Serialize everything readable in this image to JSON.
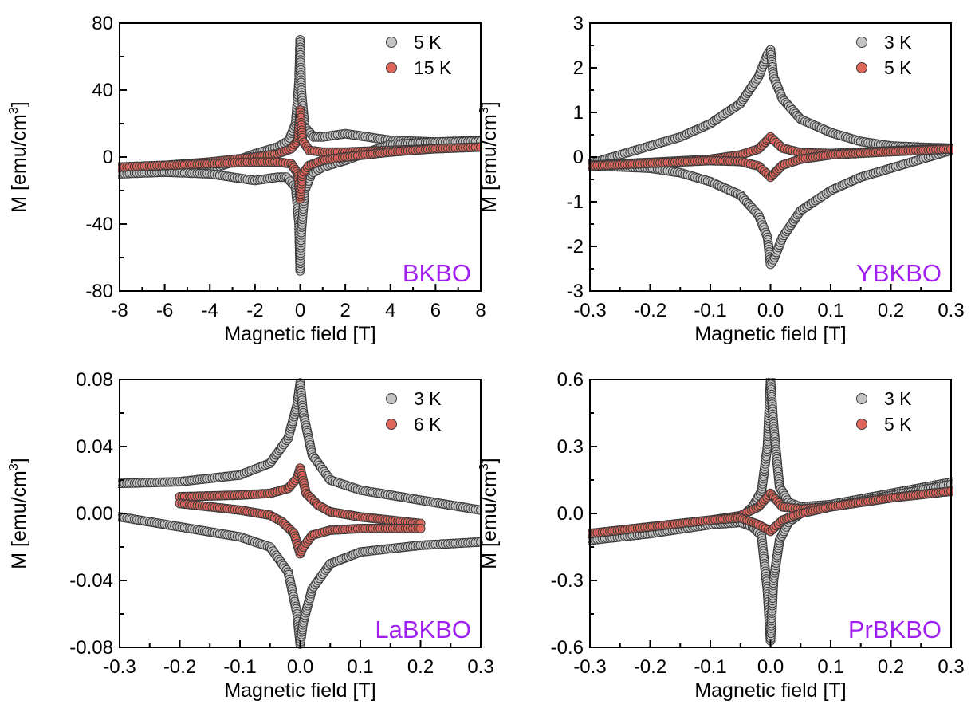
{
  "colors": {
    "gray_fill": "#c4c4c4",
    "red_fill": "#e0665c",
    "marker_edge": "#3a3a3a",
    "label_color": "#a020f0",
    "axis": "#000000"
  },
  "chart_data": [
    {
      "type": "scatter",
      "xlabel": "Magnetic field [T]",
      "ylabel_main": "M [emu/cm",
      "ylabel_sup": "3",
      "ylabel_end": "]",
      "sample_label": "BKBO",
      "xlim": [
        -8,
        8
      ],
      "ylim": [
        -80,
        80
      ],
      "xticks": [
        "-8",
        "-6",
        "-4",
        "-2",
        "0",
        "2",
        "4",
        "6",
        "8"
      ],
      "yticks": [
        "-80",
        "-40",
        "0",
        "40",
        "80"
      ],
      "legend_position": "top-right",
      "series": [
        {
          "name": "5 K",
          "color": "gray",
          "upper": [
            [
              -8,
              -9.5
            ],
            [
              -6,
              -9
            ],
            [
              -4,
              -7.5
            ],
            [
              -3,
              -3
            ],
            [
              -2,
              2
            ],
            [
              -1,
              6
            ],
            [
              -0.5,
              10
            ],
            [
              -0.2,
              20
            ],
            [
              -0.05,
              45
            ],
            [
              0,
              70
            ],
            [
              0.05,
              40
            ],
            [
              0.2,
              18
            ],
            [
              0.6,
              12
            ],
            [
              1,
              12
            ],
            [
              2,
              14
            ],
            [
              3,
              12
            ],
            [
              4,
              10
            ],
            [
              6,
              9
            ],
            [
              8,
              10
            ]
          ],
          "lower": [
            [
              -8,
              -10
            ],
            [
              -6,
              -9
            ],
            [
              -4,
              -10
            ],
            [
              -3,
              -12
            ],
            [
              -2,
              -14
            ],
            [
              -1,
              -12
            ],
            [
              -0.6,
              -12
            ],
            [
              -0.2,
              -18
            ],
            [
              -0.05,
              -40
            ],
            [
              0,
              -68
            ],
            [
              0.05,
              -45
            ],
            [
              0.2,
              -20
            ],
            [
              0.5,
              -10
            ],
            [
              1,
              -6
            ],
            [
              2,
              -2
            ],
            [
              3,
              3
            ],
            [
              4,
              7.5
            ],
            [
              6,
              9
            ],
            [
              8,
              9.5
            ]
          ]
        },
        {
          "name": "15 K",
          "color": "red",
          "upper": [
            [
              -8,
              -6
            ],
            [
              -6,
              -5
            ],
            [
              -4,
              -3
            ],
            [
              -2,
              0
            ],
            [
              -1,
              2
            ],
            [
              -0.4,
              5
            ],
            [
              -0.1,
              10
            ],
            [
              0,
              28
            ],
            [
              0.1,
              10
            ],
            [
              0.4,
              4
            ],
            [
              1,
              3
            ],
            [
              2,
              3
            ],
            [
              4,
              4
            ],
            [
              6,
              5
            ],
            [
              8,
              6
            ]
          ],
          "lower": [
            [
              -8,
              -6
            ],
            [
              -6,
              -5
            ],
            [
              -4,
              -4
            ],
            [
              -2,
              -3
            ],
            [
              -1,
              -3
            ],
            [
              -0.4,
              -4
            ],
            [
              -0.1,
              -10
            ],
            [
              0,
              -25
            ],
            [
              0.1,
              -10
            ],
            [
              0.4,
              -5
            ],
            [
              1,
              -2
            ],
            [
              2,
              0
            ],
            [
              4,
              3
            ],
            [
              6,
              5
            ],
            [
              8,
              6
            ]
          ]
        }
      ]
    },
    {
      "type": "scatter",
      "xlabel": "Magnetic field [T]",
      "ylabel_main": "M [emu/cm",
      "ylabel_sup": "3",
      "ylabel_end": "]",
      "sample_label": "YBKBO",
      "xlim": [
        -0.3,
        0.3
      ],
      "ylim": [
        -3,
        3
      ],
      "xticks": [
        "-0.3",
        "-0.2",
        "-0.1",
        "0.0",
        "0.1",
        "0.2",
        "0.3"
      ],
      "yticks": [
        "-3",
        "-2",
        "-1",
        "0",
        "1",
        "2",
        "3"
      ],
      "legend_position": "top-right",
      "series": [
        {
          "name": "3 K",
          "color": "gray",
          "upper": [
            [
              -0.3,
              -0.15
            ],
            [
              -0.25,
              0.05
            ],
            [
              -0.2,
              0.25
            ],
            [
              -0.15,
              0.45
            ],
            [
              -0.1,
              0.75
            ],
            [
              -0.05,
              1.2
            ],
            [
              -0.02,
              1.8
            ],
            [
              -0.005,
              2.3
            ],
            [
              0,
              2.4
            ],
            [
              0.005,
              1.8
            ],
            [
              0.02,
              1.3
            ],
            [
              0.05,
              0.85
            ],
            [
              0.1,
              0.55
            ],
            [
              0.15,
              0.35
            ],
            [
              0.2,
              0.25
            ],
            [
              0.25,
              0.22
            ],
            [
              0.3,
              0.2
            ]
          ],
          "lower": [
            [
              -0.3,
              -0.2
            ],
            [
              -0.25,
              -0.22
            ],
            [
              -0.2,
              -0.25
            ],
            [
              -0.15,
              -0.35
            ],
            [
              -0.1,
              -0.55
            ],
            [
              -0.05,
              -0.85
            ],
            [
              -0.02,
              -1.3
            ],
            [
              -0.005,
              -1.8
            ],
            [
              0,
              -2.4
            ],
            [
              0.005,
              -2.3
            ],
            [
              0.02,
              -1.8
            ],
            [
              0.05,
              -1.2
            ],
            [
              0.1,
              -0.75
            ],
            [
              0.15,
              -0.45
            ],
            [
              0.2,
              -0.25
            ],
            [
              0.25,
              -0.05
            ],
            [
              0.3,
              0.15
            ]
          ]
        },
        {
          "name": "5 K",
          "color": "red",
          "upper": [
            [
              -0.3,
              -0.18
            ],
            [
              -0.2,
              -0.12
            ],
            [
              -0.1,
              -0.05
            ],
            [
              -0.05,
              0.05
            ],
            [
              -0.02,
              0.18
            ],
            [
              0,
              0.45
            ],
            [
              0.02,
              0.2
            ],
            [
              0.05,
              0.1
            ],
            [
              0.1,
              0.08
            ],
            [
              0.2,
              0.14
            ],
            [
              0.3,
              0.2
            ]
          ],
          "lower": [
            [
              -0.3,
              -0.2
            ],
            [
              -0.2,
              -0.14
            ],
            [
              -0.1,
              -0.08
            ],
            [
              -0.05,
              -0.1
            ],
            [
              -0.02,
              -0.2
            ],
            [
              0,
              -0.45
            ],
            [
              0.02,
              -0.18
            ],
            [
              0.05,
              -0.05
            ],
            [
              0.1,
              0.05
            ],
            [
              0.2,
              0.12
            ],
            [
              0.3,
              0.18
            ]
          ]
        }
      ]
    },
    {
      "type": "scatter",
      "xlabel": "Magnetic field [T]",
      "ylabel_main": "M [emu/cm",
      "ylabel_sup": "3",
      "ylabel_end": "]",
      "sample_label": "LaBKBO",
      "xlim": [
        -0.3,
        0.3
      ],
      "ylim": [
        -0.08,
        0.08
      ],
      "xticks": [
        "-0.3",
        "-0.2",
        "-0.1",
        "0.0",
        "0.1",
        "0.2",
        "0.3"
      ],
      "yticks": [
        "-0.08",
        "-0.04",
        "0.00",
        "0.04",
        "0.08"
      ],
      "legend_position": "top-right",
      "series": [
        {
          "name": "3 K",
          "color": "gray",
          "upper": [
            [
              -0.3,
              0.018
            ],
            [
              -0.2,
              0.019
            ],
            [
              -0.1,
              0.023
            ],
            [
              -0.05,
              0.03
            ],
            [
              -0.02,
              0.045
            ],
            [
              -0.005,
              0.065
            ],
            [
              0,
              0.078
            ],
            [
              0.005,
              0.06
            ],
            [
              0.02,
              0.035
            ],
            [
              0.05,
              0.02
            ],
            [
              0.1,
              0.014
            ],
            [
              0.2,
              0.008
            ],
            [
              0.3,
              0.002
            ]
          ],
          "lower": [
            [
              -0.3,
              -0.002
            ],
            [
              -0.2,
              -0.008
            ],
            [
              -0.1,
              -0.014
            ],
            [
              -0.05,
              -0.02
            ],
            [
              -0.02,
              -0.035
            ],
            [
              -0.005,
              -0.06
            ],
            [
              0,
              -0.078
            ],
            [
              0.005,
              -0.065
            ],
            [
              0.02,
              -0.045
            ],
            [
              0.05,
              -0.03
            ],
            [
              0.1,
              -0.023
            ],
            [
              0.2,
              -0.019
            ],
            [
              0.3,
              -0.017
            ]
          ]
        },
        {
          "name": "6 K",
          "color": "red",
          "upper": [
            [
              -0.2,
              0.01
            ],
            [
              -0.1,
              0.011
            ],
            [
              -0.05,
              0.012
            ],
            [
              -0.02,
              0.015
            ],
            [
              -0.005,
              0.021
            ],
            [
              0,
              0.027
            ],
            [
              0.01,
              0.012
            ],
            [
              0.03,
              0.005
            ],
            [
              0.05,
              0.001
            ],
            [
              0.1,
              -0.002
            ],
            [
              0.2,
              -0.006
            ]
          ],
          "lower": [
            [
              -0.2,
              0.006
            ],
            [
              -0.1,
              0.002
            ],
            [
              -0.05,
              -0.001
            ],
            [
              -0.03,
              -0.005
            ],
            [
              -0.01,
              -0.012
            ],
            [
              0,
              -0.024
            ],
            [
              0.005,
              -0.02
            ],
            [
              0.02,
              -0.013
            ],
            [
              0.05,
              -0.01
            ],
            [
              0.1,
              -0.009
            ],
            [
              0.2,
              -0.009
            ]
          ]
        }
      ]
    },
    {
      "type": "scatter",
      "xlabel": "Magnetic field [T]",
      "ylabel_main": "M [emu/cm",
      "ylabel_sup": "3",
      "ylabel_end": "]",
      "sample_label": "PrBKBO",
      "xlim": [
        -0.3,
        0.3
      ],
      "ylim": [
        -0.6,
        0.6
      ],
      "xticks": [
        "-0.3",
        "-0.2",
        "-0.1",
        "0.0",
        "0.1",
        "0.2",
        "0.3"
      ],
      "yticks": [
        "-0.6",
        "-0.3",
        "0.0",
        "0.3",
        "0.6"
      ],
      "legend_position": "top-right",
      "series": [
        {
          "name": "3 K",
          "color": "gray",
          "upper": [
            [
              -0.3,
              -0.12
            ],
            [
              -0.2,
              -0.08
            ],
            [
              -0.1,
              -0.05
            ],
            [
              -0.05,
              -0.02
            ],
            [
              -0.03,
              0.03
            ],
            [
              -0.015,
              0.1
            ],
            [
              -0.005,
              0.3
            ],
            [
              0,
              0.6
            ],
            [
              0.005,
              0.4
            ],
            [
              0.015,
              0.12
            ],
            [
              0.03,
              0.05
            ],
            [
              0.05,
              0.03
            ],
            [
              0.1,
              0.04
            ],
            [
              0.2,
              0.09
            ],
            [
              0.3,
              0.14
            ]
          ],
          "lower": [
            [
              -0.3,
              -0.12
            ],
            [
              -0.2,
              -0.09
            ],
            [
              -0.1,
              -0.05
            ],
            [
              -0.05,
              -0.04
            ],
            [
              -0.03,
              -0.06
            ],
            [
              -0.015,
              -0.1
            ],
            [
              -0.005,
              -0.35
            ],
            [
              0,
              -0.57
            ],
            [
              0.005,
              -0.3
            ],
            [
              0.015,
              -0.12
            ],
            [
              0.03,
              -0.04
            ],
            [
              0.05,
              0.0
            ],
            [
              0.1,
              0.03
            ],
            [
              0.2,
              0.08
            ],
            [
              0.3,
              0.13
            ]
          ]
        },
        {
          "name": "5 K",
          "color": "red",
          "upper": [
            [
              -0.3,
              -0.09
            ],
            [
              -0.2,
              -0.06
            ],
            [
              -0.1,
              -0.03
            ],
            [
              -0.05,
              -0.01
            ],
            [
              -0.02,
              0.03
            ],
            [
              0,
              0.09
            ],
            [
              0.02,
              0.03
            ],
            [
              0.05,
              0.02
            ],
            [
              0.1,
              0.03
            ],
            [
              0.2,
              0.07
            ],
            [
              0.3,
              0.1
            ]
          ],
          "lower": [
            [
              -0.3,
              -0.09
            ],
            [
              -0.2,
              -0.06
            ],
            [
              -0.1,
              -0.03
            ],
            [
              -0.05,
              -0.02
            ],
            [
              -0.02,
              -0.05
            ],
            [
              0,
              -0.08
            ],
            [
              0.02,
              -0.03
            ],
            [
              0.05,
              0.0
            ],
            [
              0.1,
              0.03
            ],
            [
              0.2,
              0.07
            ],
            [
              0.3,
              0.1
            ]
          ]
        }
      ]
    }
  ]
}
